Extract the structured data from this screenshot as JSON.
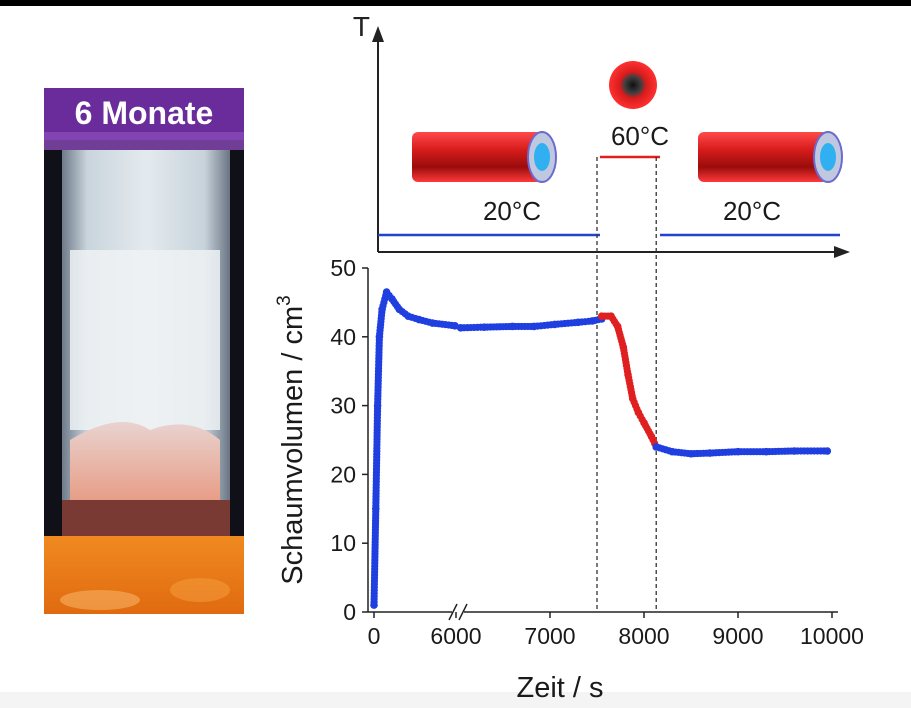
{
  "photo": {
    "label": "6 Monate"
  },
  "schematic": {
    "axis_label": "T",
    "temperature_labels": [
      "20°C",
      "60°C",
      "20°C"
    ],
    "temperature_levels_celsius": [
      20,
      60,
      20
    ],
    "colors": {
      "low_temperature": "#2244cc",
      "high_temperature": "#e02020"
    }
  },
  "chart_data": {
    "type": "scatter",
    "xlabel": "Zeit / s",
    "ylabel": "Schaumvolumen / cm",
    "ylabel_superscript": "3",
    "x_axis_break": true,
    "x_tick_labels": [
      "0",
      "6000",
      "7000",
      "8000",
      "9000",
      "10000"
    ],
    "y_tick_labels": [
      "0",
      "10",
      "20",
      "30",
      "40",
      "50"
    ],
    "ylim": [
      0,
      50
    ],
    "heating_interval": [
      7500,
      8130
    ],
    "series": [
      {
        "color": "#1f3fe0",
        "points": [
          [
            0,
            1
          ],
          [
            20,
            15
          ],
          [
            40,
            30
          ],
          [
            60,
            40
          ],
          [
            90,
            44
          ],
          [
            140,
            46.5
          ],
          [
            200,
            45.5
          ],
          [
            280,
            44
          ],
          [
            380,
            43
          ],
          [
            500,
            42.5
          ],
          [
            650,
            42
          ],
          [
            900,
            41.6
          ],
          [
            6050,
            41.3
          ],
          [
            6300,
            41.4
          ],
          [
            6600,
            41.5
          ],
          [
            6830,
            41.5
          ],
          [
            7050,
            41.8
          ],
          [
            7300,
            42.1
          ],
          [
            7450,
            42.3
          ],
          [
            7550,
            42.6
          ]
        ]
      },
      {
        "color": "#e02020",
        "points": [
          [
            7550,
            43
          ],
          [
            7650,
            43
          ],
          [
            7720,
            41.5
          ],
          [
            7780,
            38.5
          ],
          [
            7830,
            34.5
          ],
          [
            7880,
            31
          ],
          [
            7940,
            29
          ],
          [
            8000,
            27.5
          ],
          [
            8080,
            25.5
          ],
          [
            8130,
            24
          ]
        ]
      },
      {
        "color": "#1f3fe0",
        "points": [
          [
            8130,
            24
          ],
          [
            8300,
            23.3
          ],
          [
            8500,
            23
          ],
          [
            8700,
            23.1
          ],
          [
            9000,
            23.3
          ],
          [
            9300,
            23.3
          ],
          [
            9600,
            23.4
          ],
          [
            9950,
            23.4
          ]
        ]
      }
    ]
  }
}
